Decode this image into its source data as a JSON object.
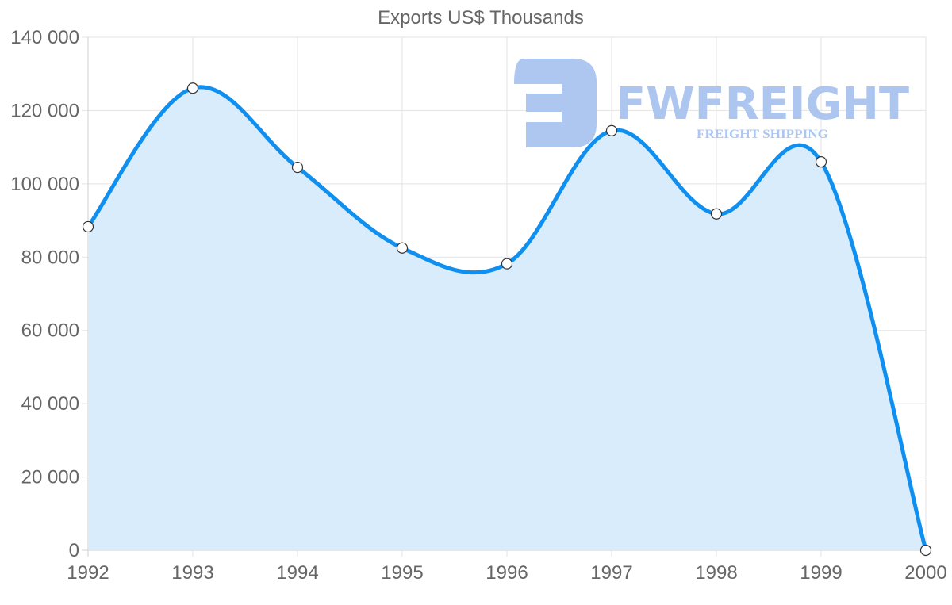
{
  "chart_data": {
    "type": "line",
    "title": "Exports US$ Thousands",
    "xlabel": "",
    "ylabel": "",
    "categories": [
      "1992",
      "1993",
      "1994",
      "1995",
      "1996",
      "1997",
      "1998",
      "1999",
      "2000"
    ],
    "series": [
      {
        "name": "Exports US$ Thousands",
        "values": [
          88300,
          126100,
          104500,
          82500,
          78200,
          114500,
          91800,
          106000,
          0
        ],
        "fill": true
      }
    ],
    "ylim": [
      0,
      140000
    ],
    "yticks": [
      0,
      20000,
      40000,
      60000,
      80000,
      100000,
      120000,
      140000
    ],
    "ytick_labels": [
      "0",
      "20 000",
      "40 000",
      "60 000",
      "80 000",
      "100 000",
      "120 000",
      "140 000"
    ],
    "grid": true,
    "legend": null,
    "colors": {
      "line": "#0f8fef",
      "fill": "#d9ecfb",
      "point_fill": "#ffffff",
      "point_stroke": "#333333"
    }
  },
  "watermark": {
    "brand": "FWFREIGHT",
    "tagline": "FREIGHT SHIPPING",
    "color": "#a9c4f0"
  }
}
